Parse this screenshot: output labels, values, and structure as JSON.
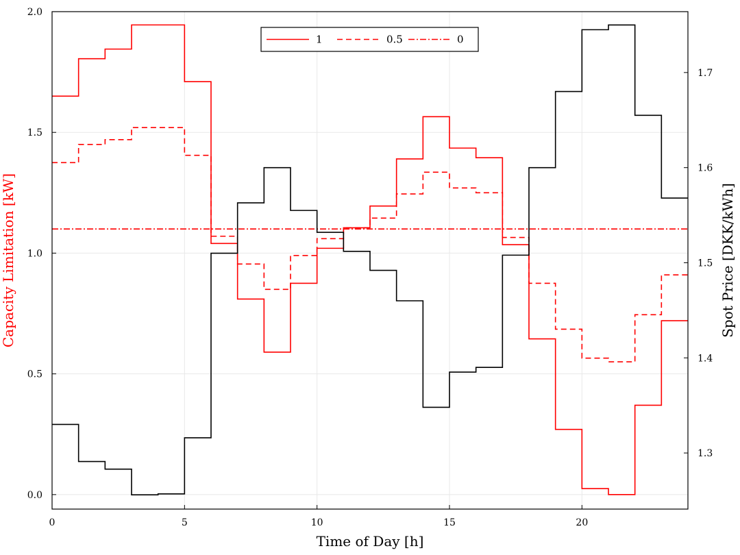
{
  "chart_data": {
    "type": "line",
    "step": "post",
    "xlabel": "Time of Day [h]",
    "ylabel_left": "Capacity Limitation [kW]",
    "ylabel_right": "Spot Price [DKK/kWh]",
    "xlim": [
      0,
      24
    ],
    "ylim_left": [
      -0.06,
      2.0
    ],
    "ylim_right": [
      1.241,
      1.764
    ],
    "xticks": [
      0,
      5,
      10,
      15,
      20
    ],
    "xtick_labels": [
      "0",
      "5",
      "10",
      "15",
      "20"
    ],
    "yticks_left": [
      0.0,
      0.5,
      1.0,
      1.5,
      2.0
    ],
    "ytick_labels_left": [
      "0.0",
      "0.5",
      "1.0",
      "1.5",
      "2.0"
    ],
    "yticks_right": [
      1.3,
      1.4,
      1.5,
      1.6,
      1.7
    ],
    "ytick_labels_right": [
      "1.3",
      "1.4",
      "1.5",
      "1.6",
      "1.7"
    ],
    "grid": true,
    "legend_position": "top-center",
    "colors": {
      "capacity": "#ff0000",
      "price": "#000000",
      "grid": "#e8e8e8"
    },
    "series": [
      {
        "name": "1",
        "axis": "left",
        "dash": "solid",
        "values": [
          1.65,
          1.805,
          1.845,
          1.945,
          1.945,
          1.71,
          1.04,
          0.81,
          0.59,
          0.875,
          1.02,
          1.105,
          1.195,
          1.39,
          1.565,
          1.435,
          1.395,
          1.035,
          0.645,
          0.27,
          0.025,
          0.0,
          0.37,
          0.72
        ]
      },
      {
        "name": "0.5",
        "axis": "left",
        "dash": "dashed",
        "values": [
          1.375,
          1.45,
          1.47,
          1.52,
          1.52,
          1.405,
          1.07,
          0.955,
          0.85,
          0.99,
          1.06,
          1.105,
          1.145,
          1.245,
          1.335,
          1.27,
          1.25,
          1.065,
          0.875,
          0.685,
          0.565,
          0.55,
          0.745,
          0.91
        ]
      },
      {
        "name": "0",
        "axis": "left",
        "dash": "dashdot",
        "values": [
          1.1,
          1.1,
          1.1,
          1.1,
          1.1,
          1.1,
          1.1,
          1.1,
          1.1,
          1.1,
          1.1,
          1.1,
          1.1,
          1.1,
          1.1,
          1.1,
          1.1,
          1.1,
          1.1,
          1.1,
          1.1,
          1.1,
          1.1,
          1.1
        ]
      },
      {
        "axis": "right",
        "dash": "solid",
        "values": [
          1.33,
          1.291,
          1.283,
          1.256,
          1.257,
          1.316,
          1.51,
          1.563,
          1.6,
          1.555,
          1.532,
          1.512,
          1.492,
          1.46,
          1.348,
          1.385,
          1.39,
          1.508,
          1.6,
          1.68,
          1.745,
          1.75,
          1.655,
          1.568
        ]
      }
    ]
  }
}
